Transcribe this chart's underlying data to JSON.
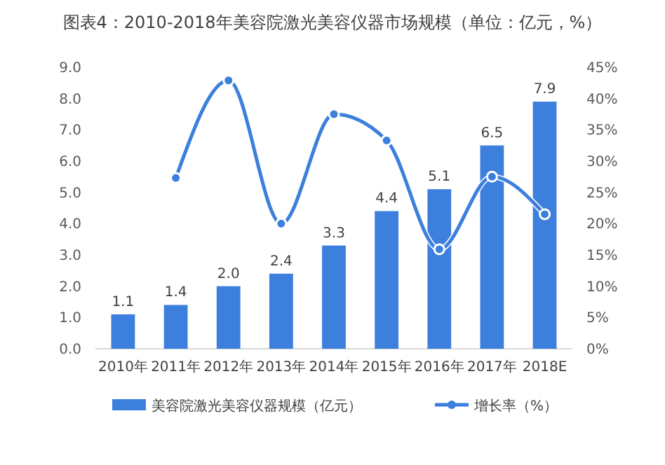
{
  "chart_data": {
    "type": "bar",
    "title": "图表4：2010-2018年美容院激光美容仪器市场规模（单位：亿元，%）",
    "categories": [
      "2010年",
      "2011年",
      "2012年",
      "2013年",
      "2014年",
      "2015年",
      "2016年",
      "2017年",
      "2018E"
    ],
    "series": [
      {
        "name": "美容院激光美容仪器规模（亿元）",
        "color": "#3c7fdc",
        "values": [
          1.1,
          1.4,
          2.0,
          2.4,
          3.3,
          4.4,
          5.1,
          6.5,
          7.9
        ],
        "value_labels": [
          "1.1",
          "1.4",
          "2.0",
          "2.4",
          "3.3",
          "4.4",
          "5.1",
          "6.5",
          "7.9"
        ]
      },
      {
        "name": "增长率（%）",
        "type": "line",
        "axis": "y2",
        "color": "#3c7fdc",
        "marker": "circle",
        "values": [
          null,
          27.3,
          42.9,
          20.0,
          37.5,
          33.3,
          15.9,
          27.5,
          21.5
        ]
      }
    ],
    "ylim": [
      0,
      9
    ],
    "yticks": [
      {
        "value": 0,
        "label": "0.0"
      },
      {
        "value": 1,
        "label": "1.0"
      },
      {
        "value": 2,
        "label": "2.0"
      },
      {
        "value": 3,
        "label": "3.0"
      },
      {
        "value": 4,
        "label": "4.0"
      },
      {
        "value": 5,
        "label": "5.0"
      },
      {
        "value": 6,
        "label": "6.0"
      },
      {
        "value": 7,
        "label": "7.0"
      },
      {
        "value": 8,
        "label": "8.0"
      },
      {
        "value": 9,
        "label": "9.0"
      }
    ],
    "y2lim": [
      0,
      45
    ],
    "y2ticks": [
      {
        "value": 0,
        "label": "0%"
      },
      {
        "value": 5,
        "label": "5%"
      },
      {
        "value": 10,
        "label": "10%"
      },
      {
        "value": 15,
        "label": "15%"
      },
      {
        "value": 20,
        "label": "20%"
      },
      {
        "value": 25,
        "label": "25%"
      },
      {
        "value": 30,
        "label": "30%"
      },
      {
        "value": 35,
        "label": "35%"
      },
      {
        "value": 40,
        "label": "40%"
      },
      {
        "value": 45,
        "label": "45%"
      }
    ],
    "grid": false,
    "legend": "bottom"
  }
}
